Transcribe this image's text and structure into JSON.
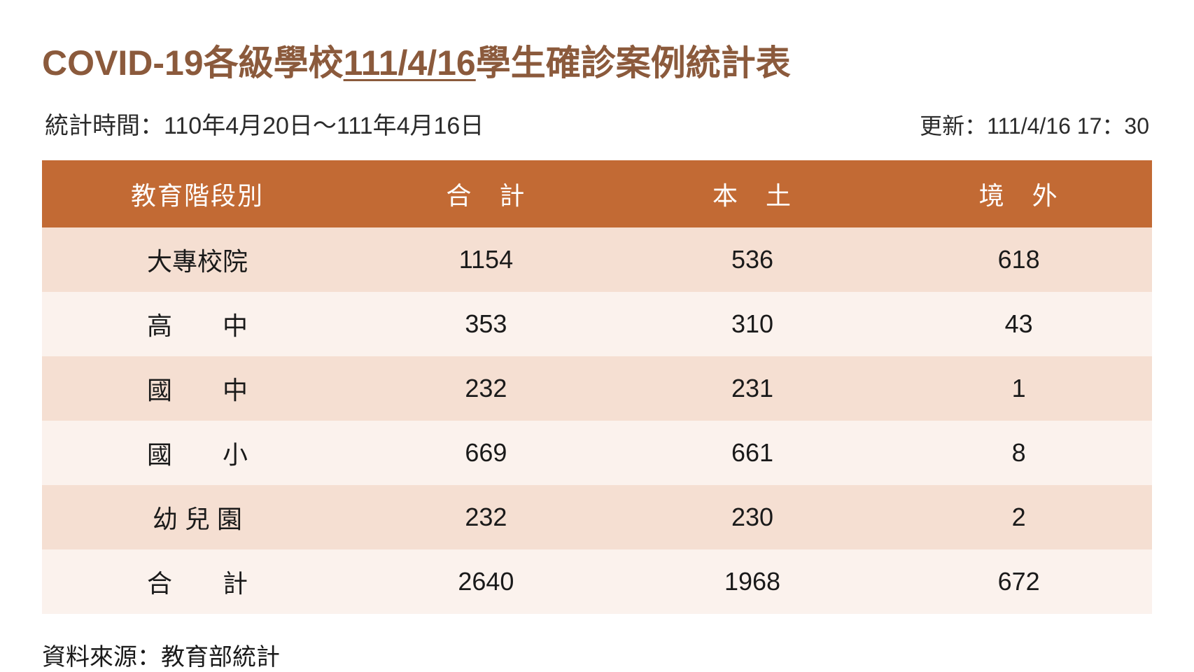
{
  "title": {
    "prefix": "COVID-19各級學校",
    "date": "111/4/16",
    "suffix": "學生確診案例統計表",
    "color": "#8b5a3c",
    "fontsize": 50
  },
  "subheader": {
    "period_label": "統計時間：110年4月20日～111年4月16日",
    "update_label": "更新：111/4/16  17：30",
    "fontsize": 34,
    "color": "#2b2b2b"
  },
  "table": {
    "header_bg": "#c26a34",
    "header_fg": "#ffffff",
    "row_odd_bg": "#f5dfd2",
    "row_even_bg": "#fbf2ed",
    "cell_fontsize": 36,
    "columns": [
      "教育階段別",
      "合　計",
      "本　土",
      "境　外"
    ],
    "rows": [
      {
        "label": "大專校院",
        "total": "1154",
        "local": "536",
        "abroad": "618"
      },
      {
        "label": "高　　中",
        "total": "353",
        "local": "310",
        "abroad": "43"
      },
      {
        "label": "國　　中",
        "total": "232",
        "local": "231",
        "abroad": "1"
      },
      {
        "label": "國　　小",
        "total": "669",
        "local": "661",
        "abroad": "8"
      },
      {
        "label": "幼 兒 園",
        "total": "232",
        "local": "230",
        "abroad": "2"
      }
    ],
    "footer": {
      "label": "合　　計",
      "total": "2640",
      "local": "1968",
      "abroad": "672"
    }
  },
  "source": {
    "text": "資料來源：教育部統計",
    "fontsize": 34
  }
}
